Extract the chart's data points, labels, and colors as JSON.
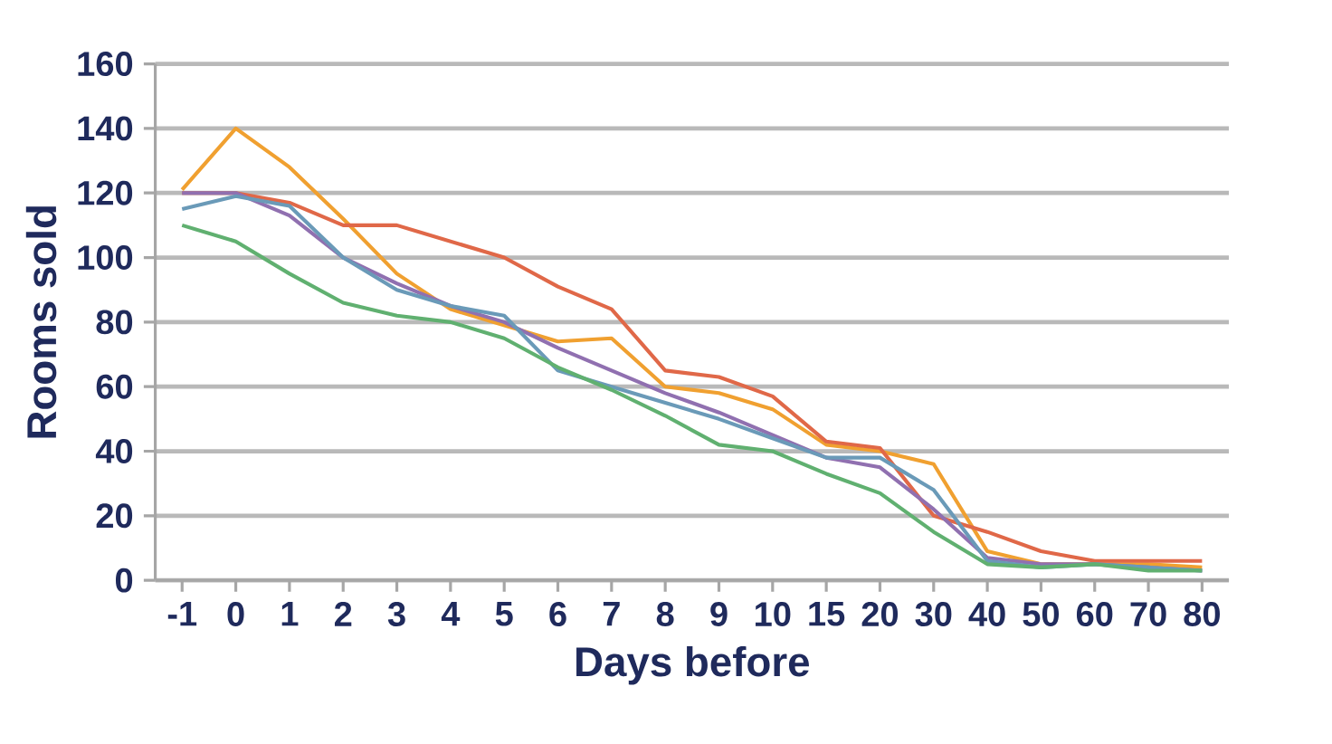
{
  "chart_data": {
    "type": "line",
    "xlabel": "Days before",
    "ylabel": "Rooms sold",
    "categories": [
      "-1",
      "0",
      "1",
      "2",
      "3",
      "4",
      "5",
      "6",
      "7",
      "8",
      "9",
      "10",
      "15",
      "20",
      "30",
      "40",
      "50",
      "60",
      "70",
      "80"
    ],
    "series": [
      {
        "color": "#f0a030",
        "values": [
          121,
          140,
          128,
          112,
          95,
          84,
          79,
          74,
          75,
          60,
          58,
          53,
          42,
          40,
          36,
          9,
          5,
          5,
          5,
          4
        ]
      },
      {
        "color": "#e06848",
        "values": [
          120,
          120,
          117,
          110,
          110,
          105,
          100,
          91,
          84,
          65,
          63,
          57,
          43,
          41,
          20,
          15,
          9,
          6,
          6,
          6
        ]
      },
      {
        "color": "#9070b0",
        "values": [
          120,
          120,
          113,
          100,
          92,
          85,
          80,
          72,
          65,
          58,
          52,
          45,
          38,
          35,
          22,
          7,
          5,
          5,
          4,
          3
        ]
      },
      {
        "color": "#6a9ab8",
        "values": [
          115,
          119,
          116,
          100,
          90,
          85,
          82,
          65,
          60,
          55,
          50,
          44,
          38,
          38,
          28,
          6,
          4,
          5,
          4,
          3
        ]
      },
      {
        "color": "#60b070",
        "values": [
          110,
          105,
          95,
          86,
          82,
          80,
          75,
          66,
          59,
          51,
          42,
          40,
          33,
          27,
          15,
          5,
          4,
          5,
          3,
          3
        ]
      }
    ],
    "ylim": [
      0,
      160
    ],
    "yticks": [
      0,
      20,
      40,
      60,
      80,
      100,
      120,
      140,
      160
    ],
    "grid": "y",
    "legend": false,
    "marker": "none",
    "line_style": "solid"
  }
}
